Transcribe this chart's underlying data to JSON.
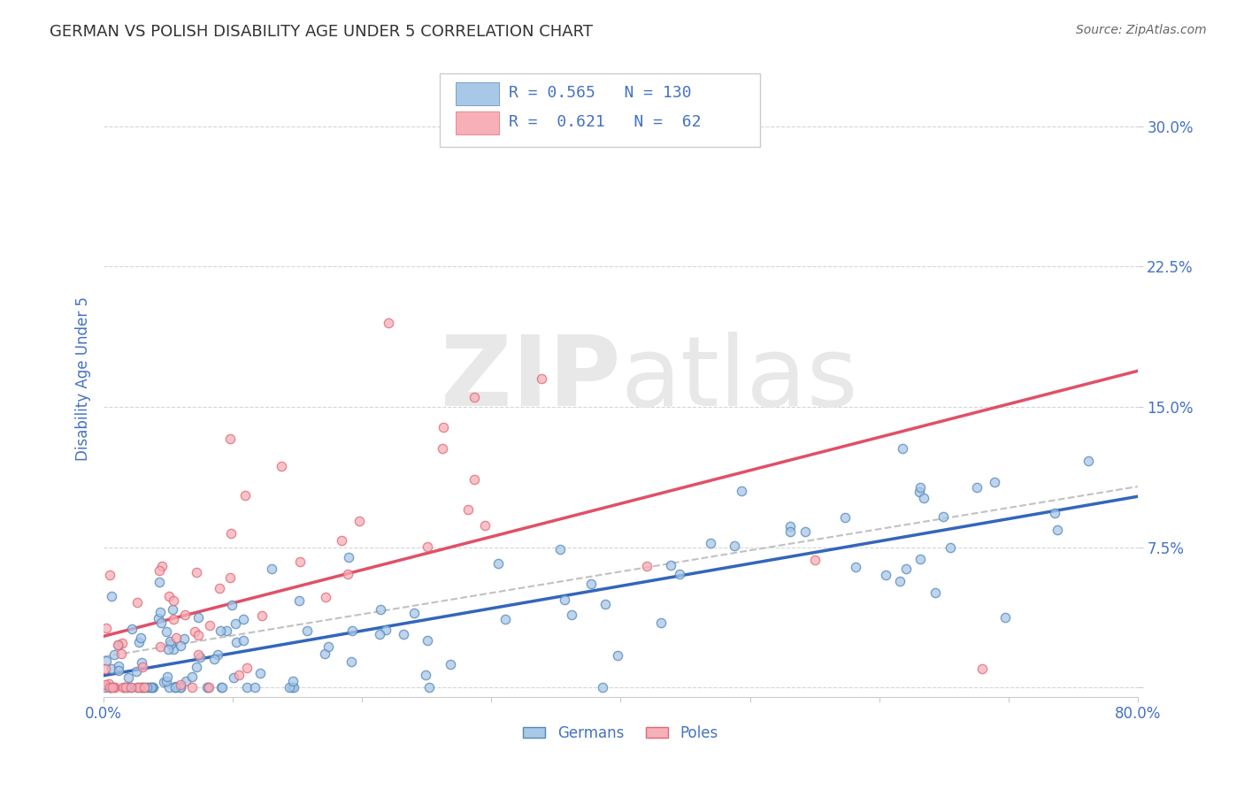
{
  "title": "GERMAN VS POLISH DISABILITY AGE UNDER 5 CORRELATION CHART",
  "source": "Source: ZipAtlas.com",
  "ylabel": "Disability Age Under 5",
  "xmin": 0.0,
  "xmax": 0.8,
  "ymin": -0.005,
  "ymax": 0.335,
  "yticks": [
    0.0,
    0.075,
    0.15,
    0.225,
    0.3
  ],
  "ytick_labels": [
    "",
    "7.5%",
    "15.0%",
    "22.5%",
    "30.0%"
  ],
  "xticks": [
    0.0,
    0.1,
    0.2,
    0.3,
    0.4,
    0.5,
    0.6,
    0.7,
    0.8
  ],
  "xtick_labels": [
    "0.0%",
    "",
    "",
    "",
    "",
    "",
    "",
    "",
    "80.0%"
  ],
  "german_color": "#A8C8E8",
  "german_edge": "#5588BB",
  "polish_color": "#F8B0B8",
  "polish_edge": "#E06878",
  "german_R": 0.565,
  "german_N": 130,
  "polish_R": 0.621,
  "polish_N": 62,
  "german_line_color": "#3366BB",
  "polish_line_color": "#E05068",
  "trend_line_color": "#BBBBBB",
  "legend_label_german": "Germans",
  "legend_label_polish": "Poles",
  "watermark_zip": "ZIP",
  "watermark_atlas": "atlas",
  "background_color": "#FFFFFF",
  "grid_color": "#CCCCCC",
  "title_color": "#333333",
  "source_color": "#666666",
  "axis_label_color": "#4472C4",
  "tick_color": "#4472C4",
  "legend_text_color": "#4472C4"
}
